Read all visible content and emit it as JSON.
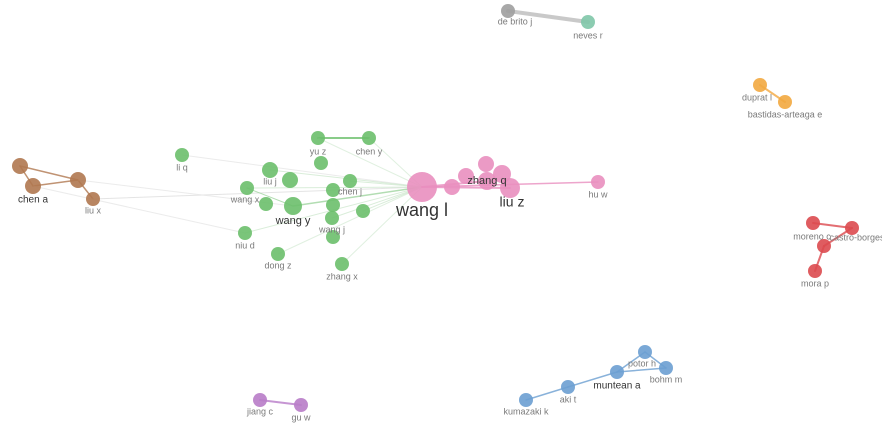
{
  "nodes": [
    {
      "label": "de brito j",
      "color": "#9e9e9e"
    },
    {
      "label": "neves r",
      "color": "#7fc6a8"
    },
    {
      "label": "duprat l",
      "color": "#f2a840"
    },
    {
      "label": "bastidas-arteaga e",
      "color": "#f2a840"
    },
    {
      "label": "moreno c",
      "color": "#dc4a4f"
    },
    {
      "label": "castro-borges",
      "color": "#dc4a4f"
    },
    {
      "label": "mora p",
      "color": "#dc4a4f"
    },
    {
      "label": "chen a",
      "color": "#b07850"
    },
    {
      "label": "liu x",
      "color": "#b07850"
    },
    {
      "label": "li q",
      "color": "#6cbf6c"
    },
    {
      "label": "yu z",
      "color": "#6cbf6c"
    },
    {
      "label": "chen y",
      "color": "#6cbf6c"
    },
    {
      "label": "liu j",
      "color": "#6cbf6c"
    },
    {
      "label": "wang x",
      "color": "#6cbf6c"
    },
    {
      "label": "wang y",
      "color": "#6cbf6c"
    },
    {
      "label": "chen j",
      "color": "#6cbf6c"
    },
    {
      "label": "wang j",
      "color": "#6cbf6c"
    },
    {
      "label": "niu d",
      "color": "#6cbf6c"
    },
    {
      "label": "dong z",
      "color": "#6cbf6c"
    },
    {
      "label": "zhang x",
      "color": "#6cbf6c"
    },
    {
      "label": "wang l",
      "color": "#e98fbf"
    },
    {
      "label": "zhang q",
      "color": "#e98fbf"
    },
    {
      "label": "liu z",
      "color": "#e98fbf"
    },
    {
      "label": "hu w",
      "color": "#e98fbf"
    },
    {
      "label": "kumazaki k",
      "color": "#6b9fd1"
    },
    {
      "label": "aki t",
      "color": "#6b9fd1"
    },
    {
      "label": "muntean a",
      "color": "#6b9fd1"
    },
    {
      "label": "potor h",
      "color": "#6b9fd1"
    },
    {
      "label": "bohm m",
      "color": "#6b9fd1"
    },
    {
      "label": "jiang c",
      "color": "#b87cc8"
    },
    {
      "label": "gu w",
      "color": "#b87cc8"
    }
  ]
}
